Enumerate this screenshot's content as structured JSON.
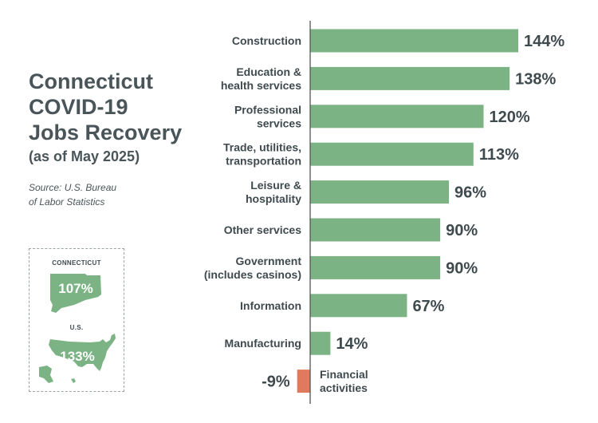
{
  "colors": {
    "positive": "#7bb384",
    "negative": "#e07a5f",
    "axis": "#555555",
    "text": "#3f4a4f"
  },
  "header": {
    "title_lines": [
      "Connecticut",
      "COVID-19",
      "Jobs Recovery"
    ],
    "subtitle": "(as of May 2025)",
    "source_lines": [
      "Source: U.S. Bureau",
      "of Labor Statistics"
    ]
  },
  "inset": {
    "connecticut": {
      "label": "CONNECTICUT",
      "value": "107%",
      "icon": "connecticut-map-icon"
    },
    "us": {
      "label": "U.S.",
      "value": "133%",
      "icon": "us-map-icon"
    }
  },
  "chart_data": {
    "type": "bar",
    "orientation": "horizontal",
    "categories": [
      [
        "Construction"
      ],
      [
        "Education &",
        "health services"
      ],
      [
        "Professional",
        "services"
      ],
      [
        "Trade, utilities,",
        "transportation"
      ],
      [
        "Leisure &",
        "hospitality"
      ],
      [
        "Other services"
      ],
      [
        "Government",
        "(includes casinos)"
      ],
      [
        "Information"
      ],
      [
        "Manufacturing"
      ],
      [
        "Financial",
        "activities"
      ]
    ],
    "values": [
      144,
      138,
      120,
      113,
      96,
      90,
      90,
      67,
      14,
      -9
    ],
    "value_labels": [
      "144%",
      "138%",
      "120%",
      "113%",
      "96%",
      "90%",
      "90%",
      "67%",
      "14%",
      "-9%"
    ],
    "unit": "%",
    "xlim": [
      -9,
      144
    ],
    "grid": false
  }
}
